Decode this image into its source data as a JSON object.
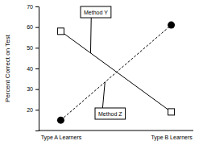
{
  "chart_data": {
    "type": "line",
    "y_label": "Percent Correct on Test",
    "categories": [
      "Type A Learners",
      "Type B Learners"
    ],
    "series": [
      {
        "name": "Method Y",
        "color": "#000000",
        "marker": "square",
        "line_style": "solid",
        "values": [
          58,
          19
        ]
      },
      {
        "name": "Method Z",
        "color": "#000000",
        "marker": "circle",
        "line_style": "dashed",
        "values": [
          15,
          61
        ]
      }
    ],
    "ylim": [
      10,
      70
    ],
    "yticks": [
      20,
      30,
      40,
      50,
      60,
      70
    ]
  }
}
